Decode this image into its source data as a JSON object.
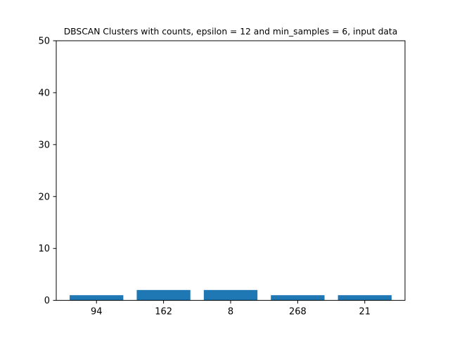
{
  "chart_data": {
    "type": "bar",
    "title": "DBSCAN Clusters with counts, epsilon = 12 and min_samples = 6, input data",
    "xlabel": "",
    "ylabel": "",
    "categories": [
      "94",
      "162",
      "8",
      "268",
      "21"
    ],
    "values": [
      1,
      2,
      2,
      1,
      1
    ],
    "ylim": [
      0,
      50
    ],
    "yticks": [
      0,
      10,
      20,
      30,
      40,
      50
    ],
    "grid": false,
    "legend": "none",
    "bar_color": "#1f77b4"
  }
}
